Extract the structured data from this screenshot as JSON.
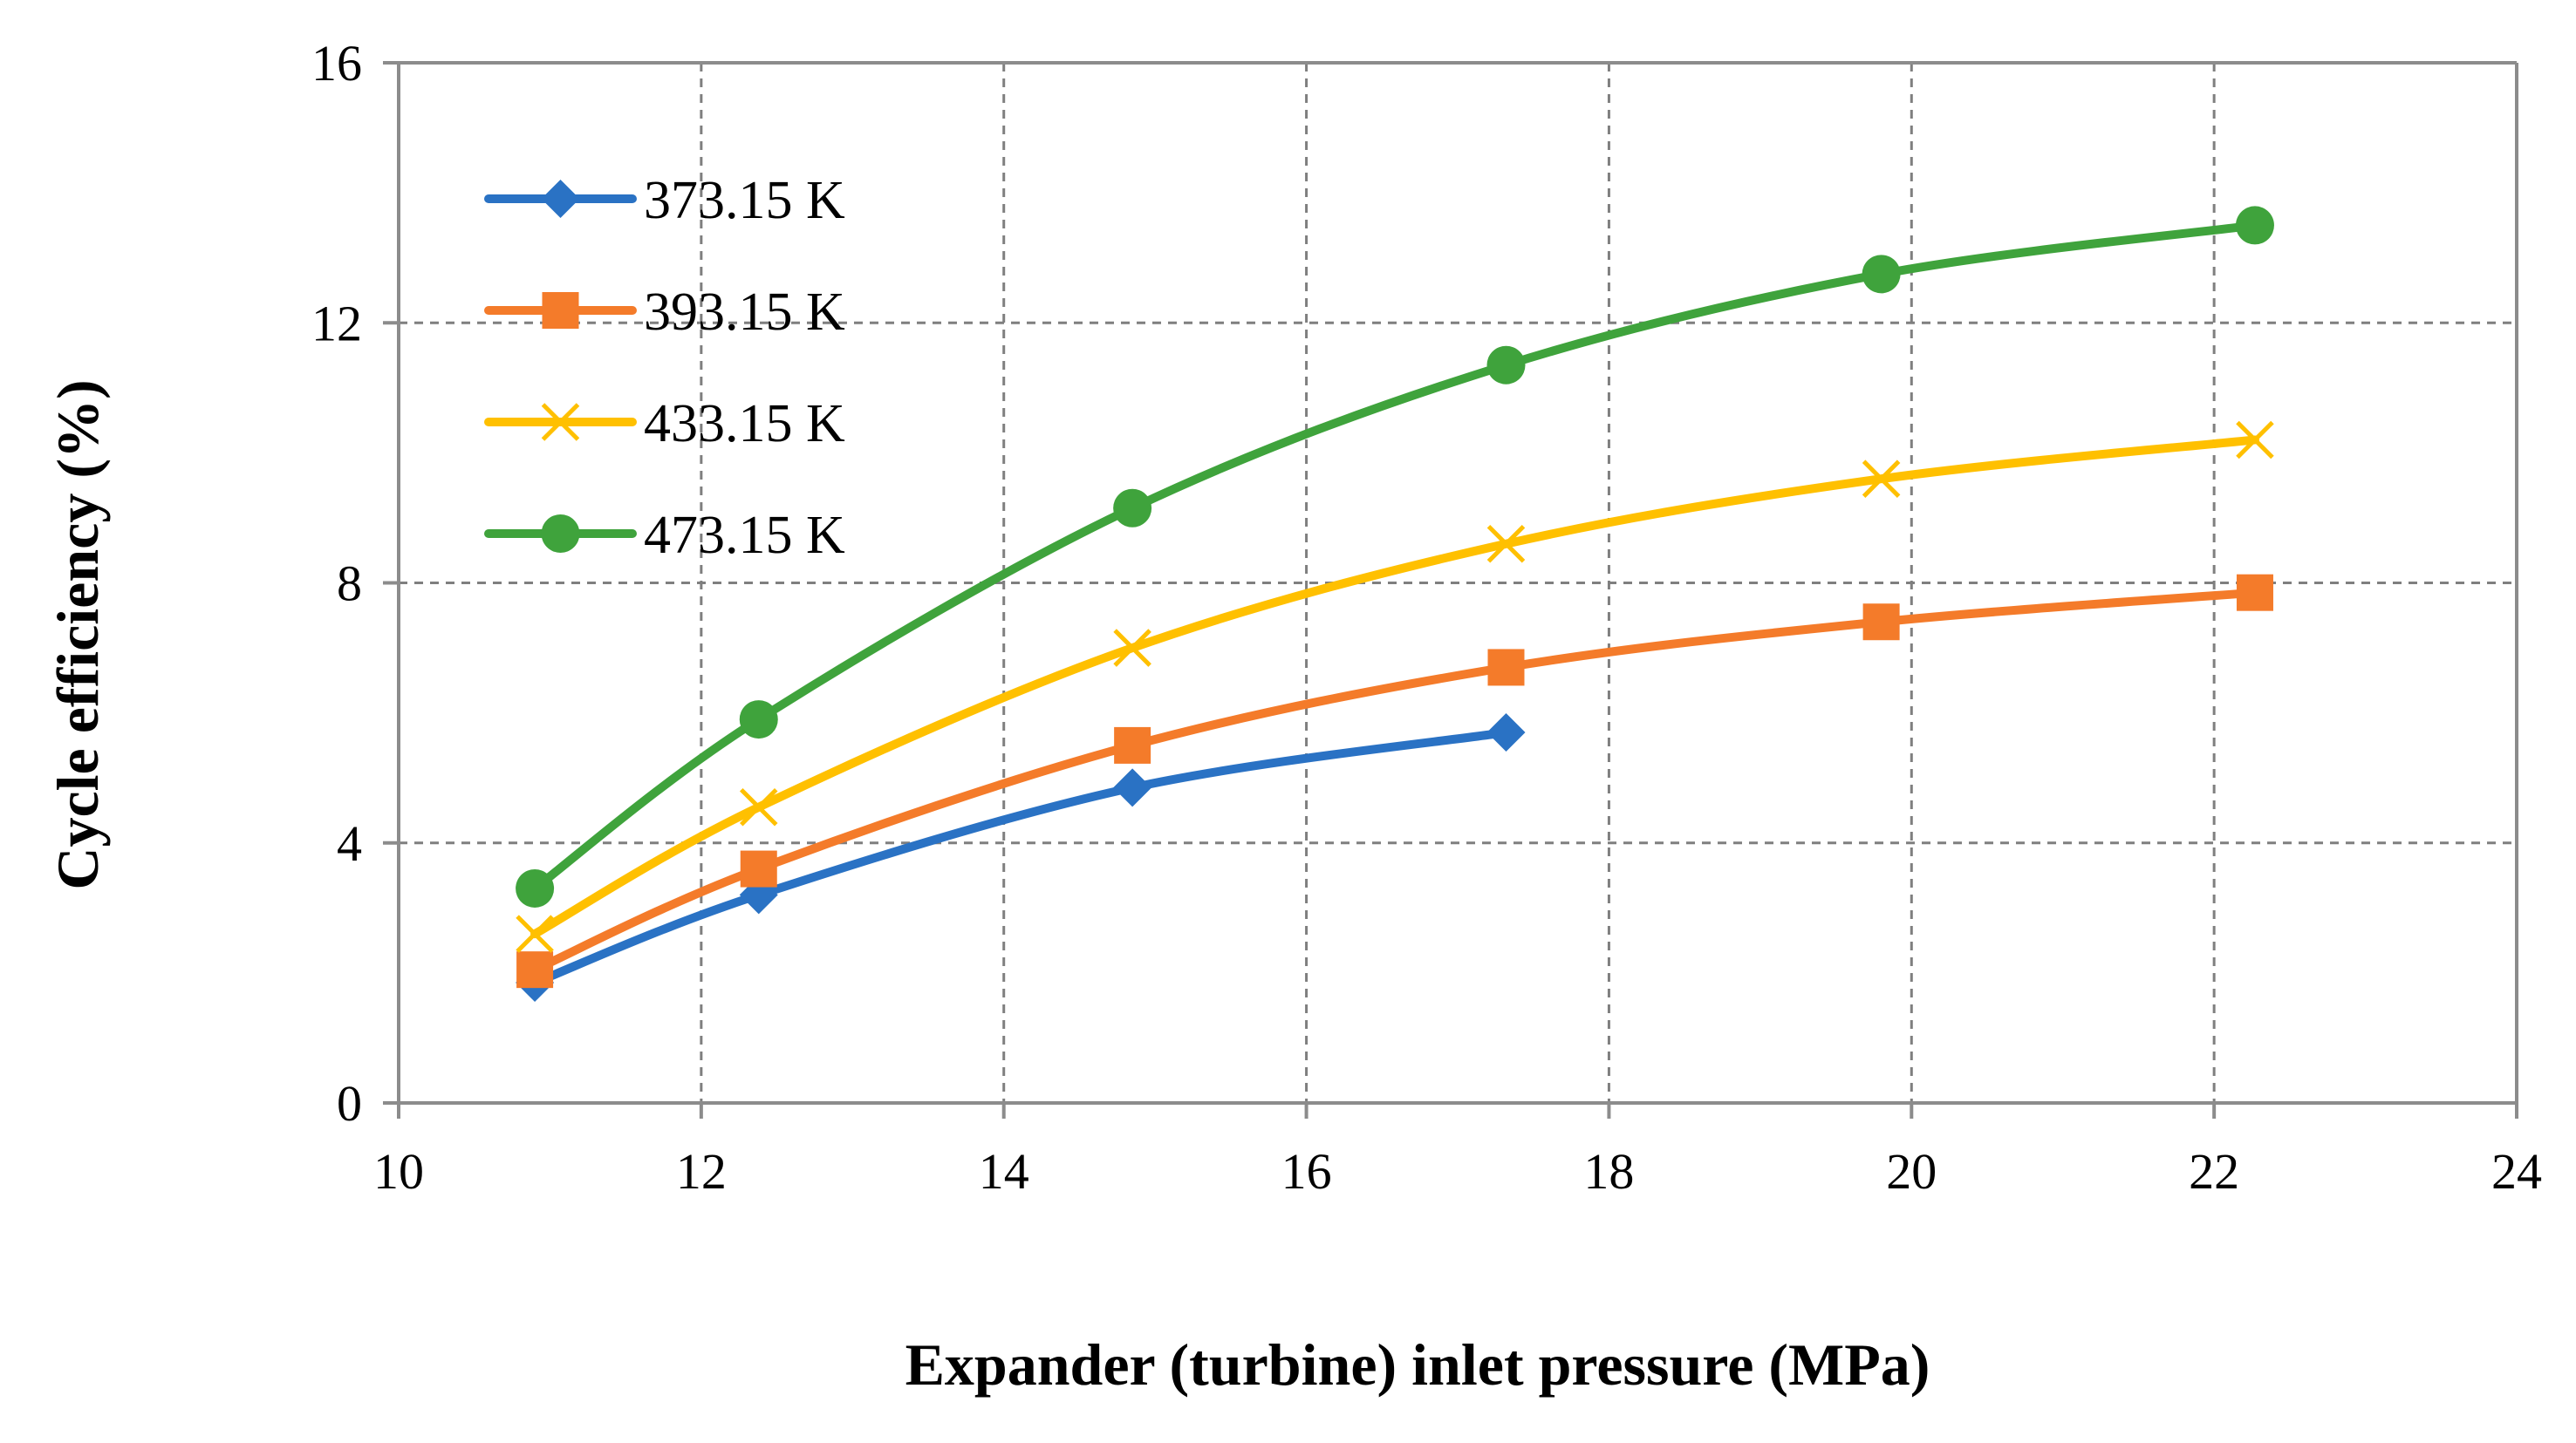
{
  "chart_data": {
    "type": "line",
    "title": "",
    "xlabel": "Expander (turbine) inlet pressure (MPa)",
    "ylabel": "Cycle efficiency (%)",
    "xlim": [
      10,
      24
    ],
    "ylim": [
      0,
      16
    ],
    "xticks": [
      10,
      12,
      14,
      16,
      18,
      20,
      22,
      24
    ],
    "yticks": [
      0,
      4,
      8,
      12,
      16
    ],
    "grid": true,
    "legend_position": "top-left",
    "series": [
      {
        "name": "373.15 K",
        "color": "#2a72c4",
        "marker": "diamond",
        "x": [
          10.9,
          12.38,
          14.85,
          17.32
        ],
        "y": [
          1.85,
          3.2,
          4.85,
          5.7
        ]
      },
      {
        "name": "393.15 K",
        "color": "#f47b2a",
        "marker": "square",
        "x": [
          10.9,
          12.38,
          14.85,
          17.32,
          19.8,
          22.27
        ],
        "y": [
          2.05,
          3.6,
          5.5,
          6.7,
          7.4,
          7.85
        ]
      },
      {
        "name": "433.15 K",
        "color": "#ffc000",
        "marker": "x",
        "x": [
          10.9,
          12.38,
          14.85,
          17.32,
          19.8,
          22.27
        ],
        "y": [
          2.6,
          4.55,
          7.0,
          8.6,
          9.6,
          10.2
        ]
      },
      {
        "name": "473.15 K",
        "color": "#3fa33c",
        "marker": "circle",
        "x": [
          10.9,
          12.38,
          14.85,
          17.32,
          19.8,
          22.27
        ],
        "y": [
          3.3,
          5.9,
          9.15,
          11.35,
          12.75,
          13.5
        ]
      }
    ]
  }
}
